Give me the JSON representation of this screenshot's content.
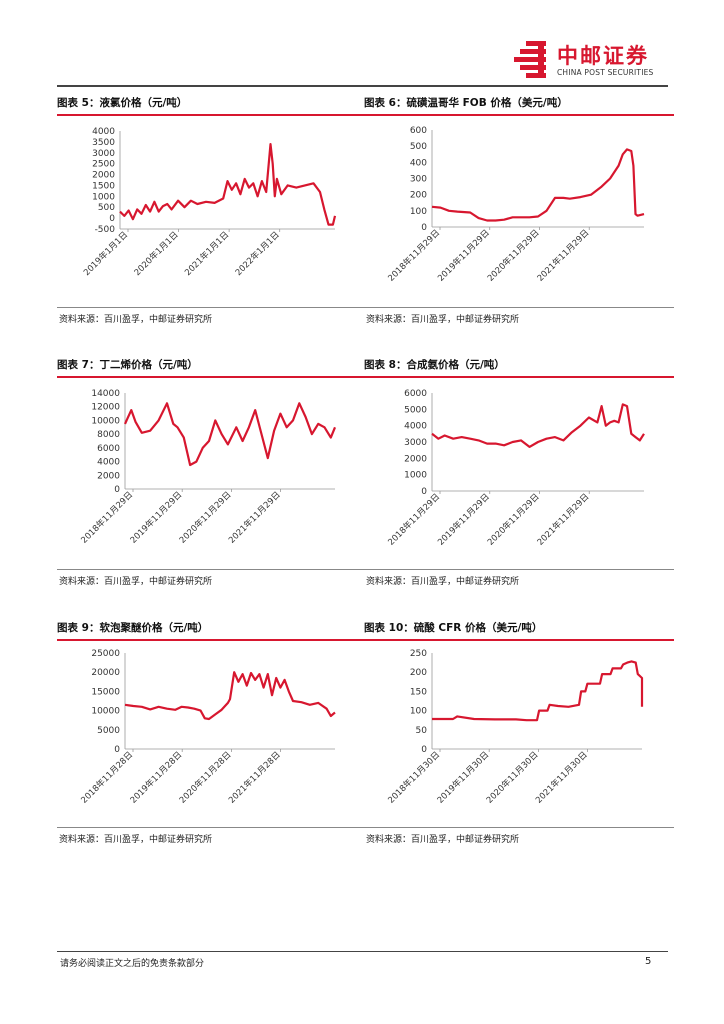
{
  "header": {
    "logo_cn": "中邮证券",
    "logo_en": "CHINA POST SECURITIES",
    "brand_color": "#d7172f"
  },
  "panels": [
    {
      "title": "图表 5：液氯价格（元/吨）",
      "source": "资料来源：百川盈孚，中邮证券研究所",
      "chart_data": {
        "type": "line",
        "title": "液氯价格（元/吨）",
        "ylim": [
          -500,
          4000
        ],
        "yticks": [
          "4000",
          "3500",
          "3000",
          "2500",
          "2000",
          "1500",
          "1000",
          "500",
          "0",
          "-500"
        ],
        "xticks": [
          "2019年1月1日",
          "2020年1月1日",
          "2021年1月1日",
          "2022年1月1日"
        ],
        "x": [
          0,
          0.02,
          0.04,
          0.06,
          0.08,
          0.1,
          0.12,
          0.14,
          0.16,
          0.18,
          0.2,
          0.22,
          0.24,
          0.27,
          0.3,
          0.33,
          0.36,
          0.4,
          0.44,
          0.48,
          0.5,
          0.52,
          0.54,
          0.56,
          0.58,
          0.6,
          0.62,
          0.64,
          0.66,
          0.68,
          0.7,
          0.71,
          0.72,
          0.73,
          0.75,
          0.78,
          0.82,
          0.86,
          0.9,
          0.93,
          0.95,
          0.97,
          0.99,
          1.0
        ],
        "values": [
          300,
          100,
          350,
          -50,
          400,
          200,
          600,
          300,
          750,
          300,
          550,
          650,
          400,
          800,
          500,
          800,
          650,
          750,
          700,
          900,
          1700,
          1300,
          1600,
          1100,
          1800,
          1400,
          1600,
          1000,
          1700,
          1200,
          3400,
          2500,
          1000,
          1800,
          1100,
          1500,
          1400,
          1500,
          1600,
          1200,
          400,
          -300,
          -300,
          100
        ]
      }
    },
    {
      "title": "图表 6：硫磺温哥华 FOB 价格（美元/吨）",
      "source": "资料来源：百川盈孚，中邮证券研究所",
      "chart_data": {
        "type": "line",
        "title": "硫磺温哥华 FOB 价格（美元/吨）",
        "ylim": [
          0,
          600
        ],
        "yticks": [
          "600",
          "500",
          "400",
          "300",
          "200",
          "100",
          "0"
        ],
        "xticks": [
          "2018年11月29日",
          "2019年11月29日",
          "2020年11月29日",
          "2021年11月29日"
        ],
        "x": [
          0,
          0.04,
          0.08,
          0.12,
          0.18,
          0.22,
          0.26,
          0.3,
          0.34,
          0.38,
          0.42,
          0.46,
          0.5,
          0.54,
          0.58,
          0.62,
          0.65,
          0.7,
          0.75,
          0.8,
          0.84,
          0.88,
          0.9,
          0.92,
          0.94,
          0.95,
          0.96,
          0.97,
          1.0
        ],
        "values": [
          125,
          120,
          100,
          95,
          90,
          55,
          40,
          40,
          45,
          60,
          60,
          60,
          65,
          100,
          180,
          180,
          175,
          185,
          200,
          250,
          300,
          380,
          450,
          480,
          470,
          380,
          80,
          70,
          80
        ]
      }
    },
    {
      "title": "图表 7：丁二烯价格（元/吨）",
      "source": "资料来源：百川盈孚，中邮证券研究所",
      "chart_data": {
        "type": "line",
        "title": "丁二烯价格（元/吨）",
        "ylim": [
          0,
          14000
        ],
        "yticks": [
          "14000",
          "12000",
          "10000",
          "8000",
          "6000",
          "4000",
          "2000",
          "0"
        ],
        "xticks": [
          "2018年11月29日",
          "2019年11月29日",
          "2020年11月29日",
          "2021年11月29日"
        ],
        "x": [
          0,
          0.03,
          0.05,
          0.08,
          0.12,
          0.16,
          0.2,
          0.23,
          0.25,
          0.28,
          0.31,
          0.34,
          0.37,
          0.4,
          0.43,
          0.46,
          0.49,
          0.53,
          0.56,
          0.59,
          0.62,
          0.65,
          0.68,
          0.71,
          0.74,
          0.77,
          0.8,
          0.83,
          0.86,
          0.89,
          0.92,
          0.95,
          0.98,
          1.0
        ],
        "values": [
          9500,
          11500,
          9800,
          8200,
          8500,
          10000,
          12500,
          9500,
          9000,
          7500,
          3500,
          4000,
          6000,
          7000,
          10000,
          8000,
          6500,
          9000,
          7000,
          9000,
          11500,
          8000,
          4500,
          8500,
          11000,
          9000,
          10000,
          12500,
          10500,
          8000,
          9500,
          9000,
          7500,
          9000
        ]
      }
    },
    {
      "title": "图表 8：合成氨价格（元/吨）",
      "source": "资料来源：百川盈孚，中邮证券研究所",
      "chart_data": {
        "type": "line",
        "title": "合成氨价格（元/吨）",
        "ylim": [
          0,
          6000
        ],
        "yticks": [
          "6000",
          "5000",
          "4000",
          "3000",
          "2000",
          "1000",
          "0"
        ],
        "xticks": [
          "2018年11月29日",
          "2019年11月29日",
          "2020年11月29日",
          "2021年11月29日"
        ],
        "x": [
          0,
          0.03,
          0.06,
          0.1,
          0.14,
          0.18,
          0.22,
          0.26,
          0.3,
          0.34,
          0.38,
          0.42,
          0.46,
          0.5,
          0.54,
          0.58,
          0.62,
          0.66,
          0.7,
          0.74,
          0.78,
          0.8,
          0.82,
          0.84,
          0.86,
          0.88,
          0.9,
          0.92,
          0.94,
          0.96,
          0.98,
          1.0
        ],
        "values": [
          3500,
          3200,
          3400,
          3200,
          3300,
          3200,
          3100,
          2900,
          2900,
          2800,
          3000,
          3100,
          2700,
          3000,
          3200,
          3300,
          3100,
          3600,
          4000,
          4500,
          4200,
          5200,
          4000,
          4200,
          4300,
          4200,
          5300,
          5200,
          3500,
          3300,
          3100,
          3500
        ]
      }
    },
    {
      "title": "图表 9：软泡聚醚价格（元/吨）",
      "source": "资料来源：百川盈孚，中邮证券研究所",
      "chart_data": {
        "type": "line",
        "title": "软泡聚醚价格（元/吨）",
        "ylim": [
          0,
          25000
        ],
        "yticks": [
          "25000",
          "20000",
          "15000",
          "10000",
          "5000",
          "0"
        ],
        "xticks": [
          "2018年11月28日",
          "2019年11月28日",
          "2020年11月28日",
          "2021年11月28日"
        ],
        "x": [
          0,
          0.04,
          0.08,
          0.12,
          0.16,
          0.2,
          0.24,
          0.27,
          0.3,
          0.33,
          0.36,
          0.38,
          0.4,
          0.43,
          0.46,
          0.49,
          0.5,
          0.52,
          0.54,
          0.56,
          0.58,
          0.6,
          0.62,
          0.64,
          0.66,
          0.68,
          0.7,
          0.72,
          0.74,
          0.76,
          0.78,
          0.8,
          0.84,
          0.88,
          0.92,
          0.96,
          0.98,
          1.0
        ],
        "values": [
          11500,
          11200,
          11000,
          10300,
          11000,
          10500,
          10200,
          11000,
          10800,
          10500,
          10000,
          8000,
          7800,
          9000,
          10200,
          12000,
          13000,
          20000,
          17500,
          19500,
          16500,
          19800,
          18000,
          19500,
          16000,
          19500,
          14000,
          18500,
          16000,
          18000,
          15000,
          12500,
          12200,
          11500,
          12000,
          10500,
          8600,
          9500
        ]
      }
    },
    {
      "title": "图表 10：硫酸 CFR 价格（美元/吨）",
      "source": "资料来源：百川盈孚，中邮证券研究所",
      "chart_data": {
        "type": "line",
        "title": "硫酸 CFR 价格（美元/吨）",
        "ylim": [
          0,
          250
        ],
        "yticks": [
          "250",
          "200",
          "150",
          "100",
          "50",
          "0"
        ],
        "xticks": [
          "2018年11月30日",
          "2019年11月30日",
          "2020年11月30日",
          "2021年11月30日"
        ],
        "x": [
          0,
          0.1,
          0.12,
          0.2,
          0.3,
          0.4,
          0.45,
          0.5,
          0.51,
          0.55,
          0.56,
          0.6,
          0.65,
          0.7,
          0.71,
          0.73,
          0.74,
          0.8,
          0.81,
          0.85,
          0.86,
          0.9,
          0.91,
          0.93,
          0.95,
          0.97,
          0.98,
          1.0,
          1.0
        ],
        "values": [
          78,
          78,
          85,
          78,
          77,
          77,
          75,
          75,
          100,
          100,
          115,
          112,
          110,
          115,
          150,
          150,
          170,
          170,
          195,
          195,
          210,
          210,
          220,
          225,
          228,
          225,
          195,
          185,
          110
        ]
      }
    }
  ],
  "footer": {
    "disclaimer": "请务必阅读正文之后的免责条款部分",
    "page_number": "5"
  }
}
